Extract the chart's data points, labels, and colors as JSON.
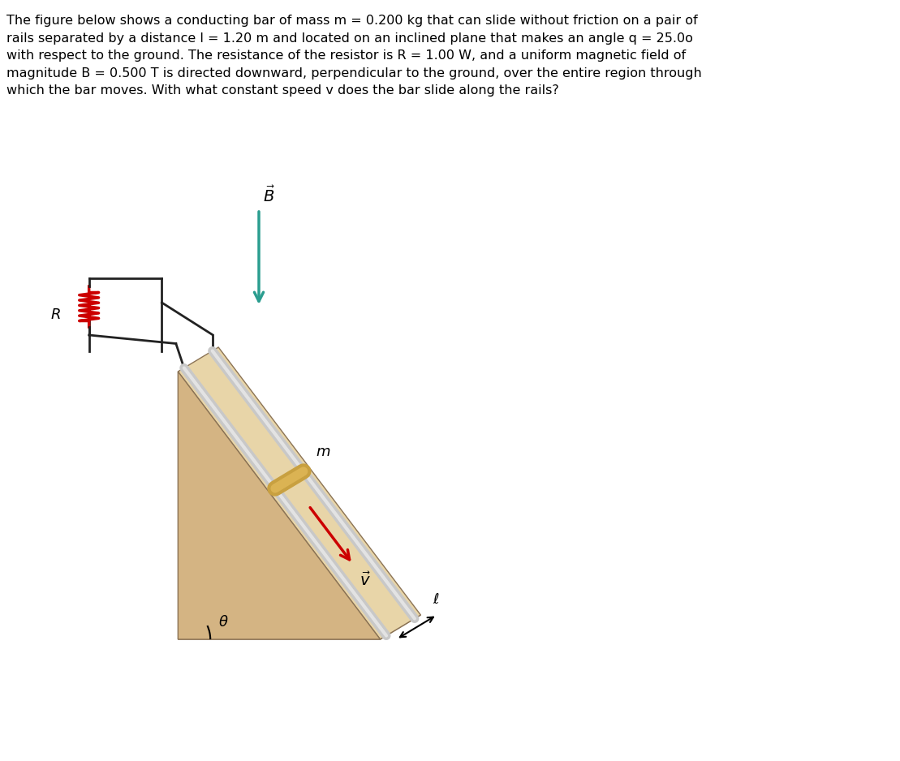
{
  "description_text": "The figure below shows a conducting bar of mass m = 0.200 kg that can slide without friction on a pair of\nrails separated by a distance l = 1.20 m and located on an inclined plane that makes an angle q = 25.0o\nwith respect to the ground. The resistance of the resistor is R = 1.00 W, and a uniform magnetic field of\nmagnitude B = 0.500 T is directed downward, perpendicular to the ground, over the entire region through\nwhich the bar moves. With what constant speed v does the bar slide along the rails?",
  "bg_color": "#ffffff",
  "text_color": "#000000",
  "incline_color": "#d4b483",
  "rail_color": "#c8c8c8",
  "bar_color": "#c8a040",
  "resistor_color": "#cc0000",
  "B_arrow_color": "#2a9d8f",
  "v_arrow_color": "#cc0000",
  "wire_color": "#222222",
  "angle_label": "θ",
  "length_label": "ℓ",
  "mass_label": "m",
  "B_label": "B",
  "v_label": "v",
  "R_label": "R"
}
